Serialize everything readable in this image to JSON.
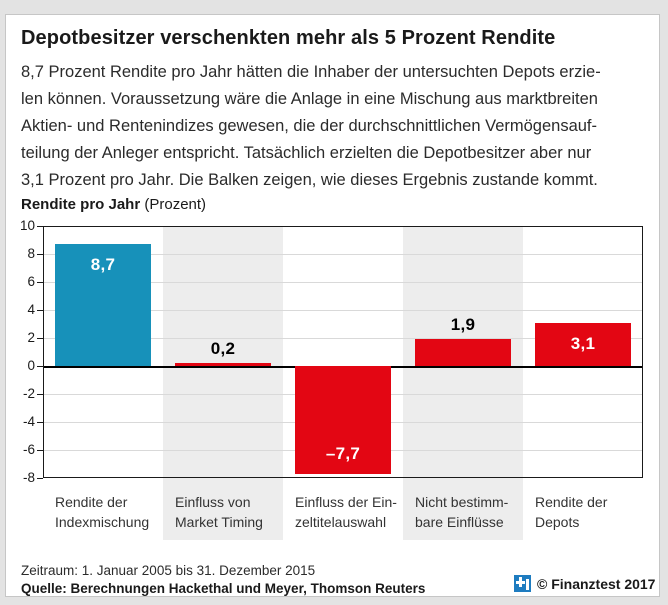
{
  "header": {
    "title": "Depotbesitzer verschenkten mehr als 5 Prozent Rendite"
  },
  "intro": {
    "lines": [
      "8,7 Prozent Rendite pro Jahr hätten die Inhaber der untersuchten Depots erzie-",
      "len können. Voraussetzung wäre die Anlage in eine Mischung aus marktbreiten",
      "Aktien- und Rentenindizes gewesen, die der durchschnittlichen Vermögensauf-",
      "teilung der Anleger entspricht. Tatsächlich erzielten die Depotbesitzer aber nur",
      "3,1 Prozent pro Jahr. Die Balken zeigen, wie dieses Ergebnis zustande kommt."
    ]
  },
  "chart": {
    "header_bold": "Rendite pro Jahr",
    "header_unit": "(Prozent)"
  },
  "chart_data": {
    "type": "bar",
    "title": "Rendite pro Jahr (Prozent)",
    "xlabel": "",
    "ylabel": "Rendite pro Jahr (Prozent)",
    "categories": [
      [
        "Rendite der",
        "Indexmischung"
      ],
      [
        "Einfluss von",
        "Market Timing"
      ],
      [
        "Einfluss der Ein-",
        "zeltitelauswahl"
      ],
      [
        "Nicht bestimm-",
        "bare Einflüsse"
      ],
      [
        "Rendite der",
        "Depots"
      ]
    ],
    "values": [
      8.7,
      0.2,
      -7.7,
      1.9,
      3.1
    ],
    "bar_colors": [
      "#1791BA",
      "#E30613",
      "#E30613",
      "#E30613",
      "#E30613"
    ],
    "bar_labels": [
      {
        "text": "8,7",
        "placement": "inside-top",
        "color": "#FFFFFF"
      },
      {
        "text": "0,2",
        "placement": "above",
        "color": "#000000"
      },
      {
        "text": "–7,7",
        "placement": "inside-bottom",
        "color": "#FFFFFF"
      },
      {
        "text": "1,9",
        "placement": "above",
        "color": "#000000"
      },
      {
        "text": "3,1",
        "placement": "inside-top",
        "color": "#FFFFFF"
      }
    ],
    "ylim": [
      -8,
      10
    ],
    "yticks": [
      10,
      8,
      6,
      4,
      2,
      0,
      -2,
      -4,
      -6,
      -8
    ],
    "gridlines": [
      8,
      6,
      4,
      2,
      -2,
      -4,
      -6
    ],
    "stripe_columns": [
      1,
      3
    ],
    "grid": true,
    "legend": false
  },
  "footer": {
    "period": "Zeitraum: 1. Januar 2005 bis 31. Dezember 2015",
    "source": "Quelle: Berechnungen Hackethal und Meyer, Thomson Reuters",
    "copyright": "© Finanztest 2017"
  },
  "colors": {
    "accent_blue": "#1791BA",
    "brand_red": "#E30613",
    "logo_blue": "#1E7CC0",
    "page_background": "#E3E3E3",
    "stripe_gray": "#EDEDED"
  }
}
